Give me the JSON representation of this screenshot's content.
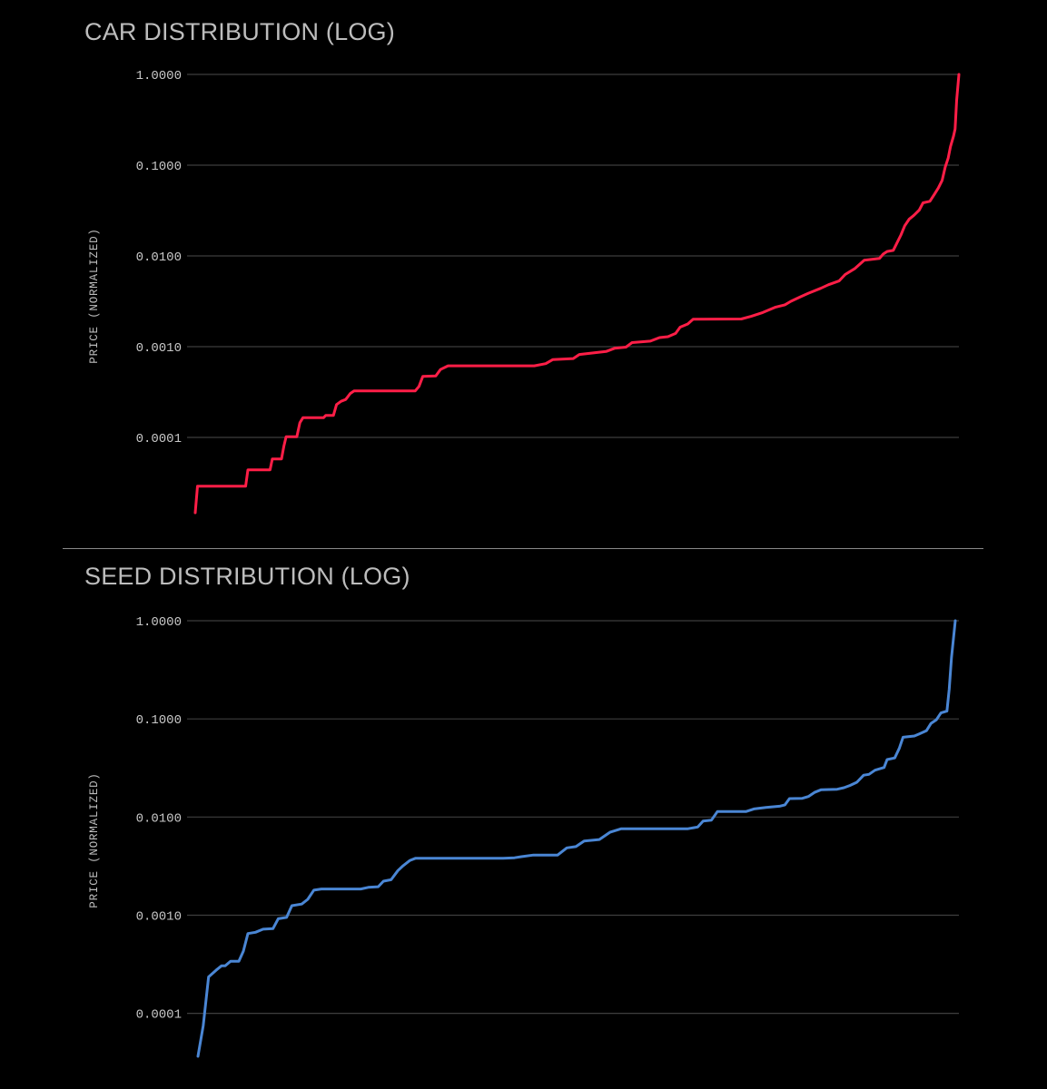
{
  "chart_data": [
    {
      "type": "line",
      "title": "CAR DISTRIBUTION (LOG)",
      "ylabel": "PRICE (NORMALIZED)",
      "xlabel": "",
      "yscale": "log",
      "ylim": [
        1.48e-05,
        1.0
      ],
      "yticks": [
        1.0,
        0.1,
        0.01,
        0.001,
        0.0001
      ],
      "ytick_labels": [
        "1.0000",
        "0.1000",
        "0.0100",
        "0.0010",
        "0.0001"
      ],
      "xlim": [
        0,
        100
      ],
      "color": "#ff1e47",
      "series": [
        {
          "name": "car",
          "points": [
            [
              0,
              1.48e-05
            ],
            [
              0.3,
              2.9e-05
            ],
            [
              6.6,
              2.9e-05
            ],
            [
              6.9,
              4.4e-05
            ],
            [
              9.8,
              4.4e-05
            ],
            [
              10.1,
              5.8e-05
            ],
            [
              11.3,
              5.8e-05
            ],
            [
              11.6,
              8e-05
            ],
            [
              11.9,
              0.000102
            ],
            [
              13.3,
              0.000102
            ],
            [
              13.7,
              0.000145
            ],
            [
              14.1,
              0.000165
            ],
            [
              16.8,
              0.000165
            ],
            [
              17.1,
              0.000175
            ],
            [
              18.1,
              0.000175
            ],
            [
              18.5,
              0.00023
            ],
            [
              19.1,
              0.00025
            ],
            [
              19.7,
              0.000262
            ],
            [
              20.3,
              0.000305
            ],
            [
              20.8,
              0.000325
            ],
            [
              28.8,
              0.000325
            ],
            [
              29.3,
              0.000365
            ],
            [
              29.8,
              0.00047
            ],
            [
              31.5,
              0.000475
            ],
            [
              32.1,
              0.00056
            ],
            [
              33.1,
              0.000615
            ],
            [
              44.4,
              0.000615
            ],
            [
              45.9,
              0.00065
            ],
            [
              46.8,
              0.00072
            ],
            [
              49.5,
              0.00074
            ],
            [
              50.3,
              0.00082
            ],
            [
              53.8,
              0.000885
            ],
            [
              54.9,
              0.00096
            ],
            [
              56.4,
              0.00099
            ],
            [
              57.2,
              0.00111
            ],
            [
              59.6,
              0.00115
            ],
            [
              60.8,
              0.00126
            ],
            [
              61.9,
              0.00129
            ],
            [
              62.9,
              0.0014
            ],
            [
              63.5,
              0.00164
            ],
            [
              64.5,
              0.00178
            ],
            [
              65.2,
              0.00201
            ],
            [
              71.5,
              0.00202
            ],
            [
              72.8,
              0.00216
            ],
            [
              74.3,
              0.00238
            ],
            [
              76.0,
              0.00273
            ],
            [
              77.2,
              0.00289
            ],
            [
              78.0,
              0.00316
            ],
            [
              79.3,
              0.00356
            ],
            [
              80.3,
              0.00388
            ],
            [
              81.9,
              0.0044
            ],
            [
              82.9,
              0.00481
            ],
            [
              84.3,
              0.0053
            ],
            [
              85.1,
              0.00624
            ],
            [
              86.4,
              0.00728
            ],
            [
              87.6,
              0.00898
            ],
            [
              89.6,
              0.0094
            ],
            [
              90.1,
              0.0105
            ],
            [
              90.6,
              0.0112
            ],
            [
              91.4,
              0.0115
            ],
            [
              91.9,
              0.014
            ],
            [
              92.4,
              0.017
            ],
            [
              92.9,
              0.0215
            ],
            [
              93.5,
              0.0255
            ],
            [
              94.1,
              0.028
            ],
            [
              94.8,
              0.032
            ],
            [
              95.3,
              0.0385
            ],
            [
              96.2,
              0.04
            ],
            [
              96.8,
              0.048
            ],
            [
              97.3,
              0.056
            ],
            [
              97.8,
              0.068
            ],
            [
              98.2,
              0.095
            ],
            [
              98.6,
              0.12
            ],
            [
              98.9,
              0.16
            ],
            [
              99.3,
              0.21
            ],
            [
              99.5,
              0.25
            ],
            [
              99.7,
              0.52
            ],
            [
              100,
              1.0
            ]
          ]
        }
      ]
    },
    {
      "type": "line",
      "title": "SEED DISTRIBUTION (LOG)",
      "ylabel": "PRICE (NORMALIZED)",
      "xlabel": "",
      "yscale": "log",
      "ylim": [
        3.65e-05,
        1.0
      ],
      "yticks": [
        1.0,
        0.1,
        0.01,
        0.001,
        0.0001
      ],
      "ytick_labels": [
        "1.0000",
        "0.1000",
        "0.0100",
        "0.0010",
        "0.0001"
      ],
      "xlim": [
        0,
        100
      ],
      "color": "#4a86d4",
      "series": [
        {
          "name": "seed",
          "points": [
            [
              0,
              3.65e-05
            ],
            [
              0.7,
              7.5e-05
            ],
            [
              1.4,
              0.000235
            ],
            [
              2.4,
              0.000275
            ],
            [
              3.1,
              0.000305
            ],
            [
              3.6,
              0.000305
            ],
            [
              4.3,
              0.00034
            ],
            [
              5.4,
              0.00034
            ],
            [
              6.0,
              0.00043
            ],
            [
              6.6,
              0.00065
            ],
            [
              7.6,
              0.00067
            ],
            [
              8.6,
              0.00072
            ],
            [
              9.9,
              0.00073
            ],
            [
              10.6,
              0.00092
            ],
            [
              11.7,
              0.00095
            ],
            [
              12.4,
              0.00125
            ],
            [
              13.7,
              0.0013
            ],
            [
              14.5,
              0.00145
            ],
            [
              15.3,
              0.0018
            ],
            [
              16.3,
              0.00185
            ],
            [
              21.5,
              0.00185
            ],
            [
              22.5,
              0.00192
            ],
            [
              23.8,
              0.00195
            ],
            [
              24.5,
              0.00222
            ],
            [
              25.5,
              0.0023
            ],
            [
              26.4,
              0.00285
            ],
            [
              27.1,
              0.0032
            ],
            [
              28.0,
              0.00362
            ],
            [
              28.7,
              0.0038
            ],
            [
              40.3,
              0.0038
            ],
            [
              41.8,
              0.00385
            ],
            [
              42.7,
              0.00395
            ],
            [
              44.3,
              0.0041
            ],
            [
              47.5,
              0.0041
            ],
            [
              48.7,
              0.00485
            ],
            [
              49.9,
              0.005
            ],
            [
              51.0,
              0.0057
            ],
            [
              53.0,
              0.0059
            ],
            [
              54.4,
              0.007
            ],
            [
              55.9,
              0.0076
            ],
            [
              64.7,
              0.0076
            ],
            [
              66.0,
              0.00792
            ],
            [
              66.7,
              0.0091
            ],
            [
              67.8,
              0.0093
            ],
            [
              68.6,
              0.0114
            ],
            [
              72.4,
              0.0114
            ],
            [
              73.4,
              0.0121
            ],
            [
              75.0,
              0.0125
            ],
            [
              76.8,
              0.0129
            ],
            [
              77.5,
              0.0133
            ],
            [
              78.1,
              0.0154
            ],
            [
              79.8,
              0.0155
            ],
            [
              80.6,
              0.0162
            ],
            [
              81.4,
              0.0178
            ],
            [
              82.3,
              0.019
            ],
            [
              84.4,
              0.0192
            ],
            [
              85.3,
              0.0199
            ],
            [
              86.1,
              0.021
            ],
            [
              87.0,
              0.0226
            ],
            [
              87.9,
              0.0267
            ],
            [
              88.6,
              0.0272
            ],
            [
              89.4,
              0.03
            ],
            [
              90.6,
              0.032
            ],
            [
              91.0,
              0.0385
            ],
            [
              92.0,
              0.04
            ],
            [
              92.6,
              0.05
            ],
            [
              93.1,
              0.065
            ],
            [
              94.6,
              0.067
            ],
            [
              95.2,
              0.07
            ],
            [
              96.2,
              0.076
            ],
            [
              96.8,
              0.09
            ],
            [
              97.5,
              0.098
            ],
            [
              98.1,
              0.115
            ],
            [
              98.9,
              0.12
            ],
            [
              99.2,
              0.2
            ],
            [
              99.5,
              0.42
            ],
            [
              100,
              1.0
            ]
          ]
        }
      ]
    }
  ]
}
